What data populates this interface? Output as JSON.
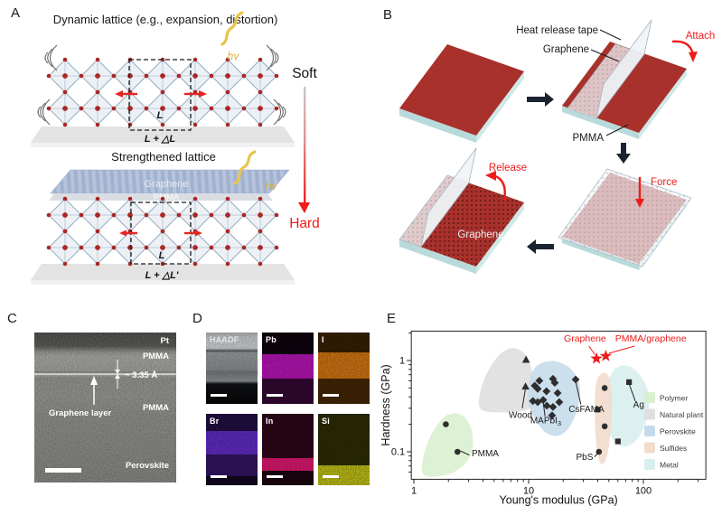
{
  "colors": {
    "accent_red": "#e8231e",
    "film_red": "#a8312c",
    "substrate_cyan": "#cfe7e7",
    "graphene_sheet_blue": "#b5c3db",
    "atom_red": "#ab2726",
    "hv_yellow": "#dfb844"
  },
  "panel_a": {
    "label": "A",
    "title_top": "Dynamic lattice (e.g., expansion, distortion)",
    "title_bottom": "Strengthened lattice",
    "soft": "Soft",
    "hard": "Hard",
    "hv": "hv",
    "l": "L",
    "l_plus": "L + △L",
    "l_plus_prime": "L + △L'",
    "graphene": "Graphene",
    "pmma": "PMMA"
  },
  "panel_b": {
    "label": "B",
    "heat_release_tape": "Heat release tape",
    "graphene": "Graphene",
    "pmma": "PMMA",
    "attach": "Attach",
    "force": "Force",
    "release": "Release",
    "graphene_film": "Graphene"
  },
  "panel_c": {
    "label": "C",
    "pt": "Pt",
    "pmma_top": "PMMA",
    "spacing": "~ 3.35 Å",
    "graphene_layer": "Graphene layer",
    "pmma_bottom": "PMMA",
    "perovskite": "Perovskite"
  },
  "panel_d": {
    "label": "D",
    "tiles": [
      {
        "label": "HAADF"
      },
      {
        "label": "Pb"
      },
      {
        "label": "I"
      },
      {
        "label": "Br"
      },
      {
        "label": "In"
      },
      {
        "label": "Si"
      }
    ]
  },
  "panel_e": {
    "label": "E"
  },
  "chart_data": {
    "type": "scatter",
    "xlabel": "Young's modulus (GPa)",
    "ylabel": "Hardness (GPa)",
    "x_scale": "log",
    "y_scale": "log",
    "xlim": [
      0.95,
      350
    ],
    "ylim": [
      0.05,
      2.1
    ],
    "x_ticks": [
      1,
      10,
      100
    ],
    "y_ticks": [
      0.1,
      1
    ],
    "grid": false,
    "regions": [
      {
        "name": "Natural plant",
        "color": "#dfdfdf",
        "points": [
          [
            3.6,
            0.33
          ],
          [
            3.9,
            0.55
          ],
          [
            4.6,
            0.85
          ],
          [
            5.6,
            1.2
          ],
          [
            7.0,
            1.4
          ],
          [
            8.6,
            1.32
          ],
          [
            10.2,
            1.0
          ],
          [
            10.9,
            0.68
          ],
          [
            12.3,
            0.46
          ],
          [
            11.6,
            0.33
          ],
          [
            9.5,
            0.28
          ],
          [
            6.8,
            0.27
          ],
          [
            4.8,
            0.27
          ],
          [
            3.9,
            0.28
          ]
        ]
      },
      {
        "name": "Polymer",
        "color": "#d9efcf",
        "points": [
          [
            1.15,
            0.062
          ],
          [
            1.25,
            0.11
          ],
          [
            1.5,
            0.18
          ],
          [
            1.85,
            0.25
          ],
          [
            2.3,
            0.27
          ],
          [
            2.85,
            0.24
          ],
          [
            3.25,
            0.17
          ],
          [
            3.3,
            0.11
          ],
          [
            2.9,
            0.075
          ],
          [
            2.2,
            0.058
          ],
          [
            1.6,
            0.053
          ],
          [
            1.25,
            0.053
          ]
        ]
      },
      {
        "name": "Perovskite",
        "color": "#c5dbeb",
        "points": [
          [
            9.8,
            0.42
          ],
          [
            10.2,
            0.65
          ],
          [
            11.4,
            0.86
          ],
          [
            13.5,
            0.97
          ],
          [
            16.5,
            1.0
          ],
          [
            20,
            0.93
          ],
          [
            24.5,
            0.78
          ],
          [
            28.5,
            0.55
          ],
          [
            27.5,
            0.33
          ],
          [
            24,
            0.2
          ],
          [
            19,
            0.145
          ],
          [
            14,
            0.155
          ],
          [
            11,
            0.24
          ],
          [
            10,
            0.32
          ]
        ]
      },
      {
        "name": "Metal",
        "color": "#d9eeee",
        "points": [
          [
            48,
            0.45
          ],
          [
            51,
            0.68
          ],
          [
            57,
            0.84
          ],
          [
            68,
            0.9
          ],
          [
            82,
            0.83
          ],
          [
            98,
            0.65
          ],
          [
            112,
            0.45
          ],
          [
            112,
            0.28
          ],
          [
            100,
            0.17
          ],
          [
            82,
            0.12
          ],
          [
            63,
            0.11
          ],
          [
            52,
            0.14
          ],
          [
            47,
            0.22
          ],
          [
            46,
            0.33
          ]
        ]
      },
      {
        "name": "Sulfides",
        "color": "#f2dccc",
        "points": [
          [
            39,
            0.62
          ],
          [
            43,
            0.73
          ],
          [
            48,
            0.74
          ],
          [
            52,
            0.6
          ],
          [
            53.5,
            0.38
          ],
          [
            52.5,
            0.2
          ],
          [
            49,
            0.09
          ],
          [
            44,
            0.068
          ],
          [
            40,
            0.085
          ],
          [
            38,
            0.16
          ],
          [
            37.5,
            0.32
          ],
          [
            38,
            0.48
          ]
        ]
      }
    ],
    "series": [
      {
        "name": "polymer-circles",
        "marker": "circle",
        "points": [
          [
            1.9,
            0.2
          ],
          [
            2.4,
            0.1
          ]
        ]
      },
      {
        "name": "wood-triangles",
        "marker": "triangle",
        "points": [
          [
            9.5,
            1.02
          ],
          [
            9.4,
            0.52
          ]
        ]
      },
      {
        "name": "perovskite-diamonds",
        "marker": "diamond",
        "points": [
          [
            11.3,
            0.53
          ],
          [
            12,
            0.49
          ],
          [
            12.4,
            0.6
          ],
          [
            14.3,
            0.46
          ],
          [
            13.4,
            0.37
          ],
          [
            10.9,
            0.36
          ],
          [
            12,
            0.35
          ],
          [
            14.4,
            0.32
          ],
          [
            16.3,
            0.63
          ],
          [
            16.9,
            0.57
          ],
          [
            17.9,
            0.44
          ],
          [
            16.3,
            0.31
          ],
          [
            16,
            0.25
          ],
          [
            18.5,
            0.35
          ],
          [
            25.7,
            0.62
          ]
        ]
      },
      {
        "name": "sulfide-circles",
        "marker": "circle",
        "points": [
          [
            46,
            0.5
          ],
          [
            46,
            0.19
          ],
          [
            41,
            0.1
          ]
        ]
      },
      {
        "name": "metal-squares",
        "marker": "square",
        "points": [
          [
            40,
            0.29
          ],
          [
            75,
            0.58
          ],
          [
            60,
            0.13
          ]
        ]
      },
      {
        "name": "graphene-stars",
        "marker": "star",
        "color": "#ee1c1c",
        "points": [
          [
            39,
            1.05
          ],
          [
            47,
            1.12
          ]
        ]
      }
    ],
    "point_labels": [
      {
        "text": "PMMA",
        "x": 3.19,
        "y": 0.089,
        "anchor": "start",
        "line": [
          [
            2.55,
            0.102
          ],
          [
            3.05,
            0.092
          ]
        ]
      },
      {
        "text": "Wood",
        "x": 8.5,
        "y": 0.235,
        "anchor": "middle",
        "line": [
          [
            9.35,
            0.48
          ],
          [
            8.8,
            0.3
          ]
        ]
      },
      {
        "text": "MAPbI",
        "sub": "3",
        "x": 14.1,
        "y": 0.205,
        "anchor": "middle",
        "line": [
          [
            13.4,
            0.35
          ],
          [
            13.9,
            0.245
          ]
        ]
      },
      {
        "text": "CsFAMA",
        "x": 31.9,
        "y": 0.272,
        "anchor": "middle",
        "line": [
          [
            25.9,
            0.57
          ],
          [
            28.5,
            0.33
          ]
        ]
      },
      {
        "text": "PbS",
        "x": 36.5,
        "y": 0.081,
        "anchor": "end",
        "line": [
          [
            40.5,
            0.098
          ],
          [
            37.5,
            0.088
          ]
        ]
      },
      {
        "text": "Ag",
        "x": 91,
        "y": 0.305,
        "anchor": "middle",
        "line": [
          [
            75.5,
            0.545
          ],
          [
            85,
            0.36
          ]
        ]
      },
      {
        "text": "Graphene",
        "x": 31,
        "y": 1.62,
        "anchor": "middle",
        "color": "#ee1c1c",
        "size": 10.5,
        "line": [
          [
            33.5,
            1.44
          ],
          [
            37.8,
            1.16
          ]
        ]
      },
      {
        "text": "PMMA/graphene",
        "x": 116,
        "y": 1.62,
        "anchor": "middle",
        "color": "#ee1c1c",
        "size": 10.5,
        "line": [
          [
            84,
            1.44
          ],
          [
            50,
            1.2
          ]
        ]
      }
    ],
    "legend": {
      "position": "right",
      "entries": [
        {
          "label": "Polymer",
          "color": "#d9efcf"
        },
        {
          "label": "Natural plant",
          "color": "#dfdfdf"
        },
        {
          "label": "Perovskite",
          "color": "#c5dbeb"
        },
        {
          "label": "Sulfides",
          "color": "#f2dccc"
        },
        {
          "label": "Metal",
          "color": "#d9eeee"
        }
      ]
    }
  }
}
